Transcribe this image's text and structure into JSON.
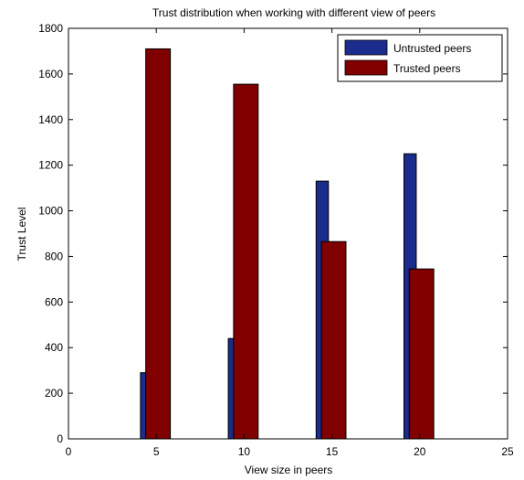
{
  "chart_data": {
    "type": "bar",
    "title": "Trust distribution when working with different view of peers",
    "xlabel": "View size in peers",
    "ylabel": "Trust Level",
    "xlim": [
      0,
      25
    ],
    "ylim": [
      0,
      1800
    ],
    "xticks": [
      0,
      5,
      10,
      15,
      20,
      25
    ],
    "yticks": [
      0,
      200,
      400,
      600,
      800,
      1000,
      1200,
      1400,
      1600,
      1800
    ],
    "grid": false,
    "legend_position": "top-right",
    "x": [
      5,
      10,
      15,
      20
    ],
    "series": [
      {
        "name": "Untrusted peers",
        "color": "#1a2d8c",
        "values": [
          290,
          440,
          1130,
          1250
        ]
      },
      {
        "name": "Trusted peers",
        "color": "#800000",
        "values": [
          1710,
          1555,
          865,
          745
        ]
      }
    ]
  }
}
